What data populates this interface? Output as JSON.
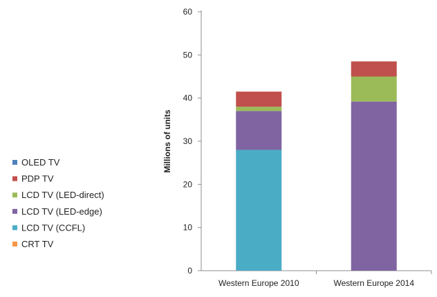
{
  "chart_data": {
    "type": "bar",
    "stacked": true,
    "categories": [
      "Western Europe 2010",
      "Western Europe 2014"
    ],
    "ylabel": "Millions of units",
    "ylim": [
      0,
      60
    ],
    "yticks": [
      0,
      10,
      20,
      30,
      40,
      50,
      60
    ],
    "grid": false,
    "legend_position": "left",
    "legend_order": [
      "OLED TV",
      "PDP TV",
      "LCD TV (LED-direct)",
      "LCD TV (LED-edge)",
      "LCD TV (CCFL)",
      "CRT TV"
    ],
    "series": [
      {
        "name": "CRT TV",
        "color": "#f79646",
        "values": [
          0,
          0
        ]
      },
      {
        "name": "LCD TV (CCFL)",
        "color": "#4bacc6",
        "values": [
          28,
          0
        ]
      },
      {
        "name": "LCD TV (LED-edge)",
        "color": "#8064a2",
        "values": [
          9,
          39.2
        ]
      },
      {
        "name": "LCD TV (LED-direct)",
        "color": "#9bbb59",
        "values": [
          1,
          5.8
        ]
      },
      {
        "name": "PDP TV",
        "color": "#c0504d",
        "values": [
          3.5,
          3.5
        ]
      },
      {
        "name": "OLED TV",
        "color": "#4f81bd",
        "values": [
          0,
          0
        ]
      }
    ]
  }
}
